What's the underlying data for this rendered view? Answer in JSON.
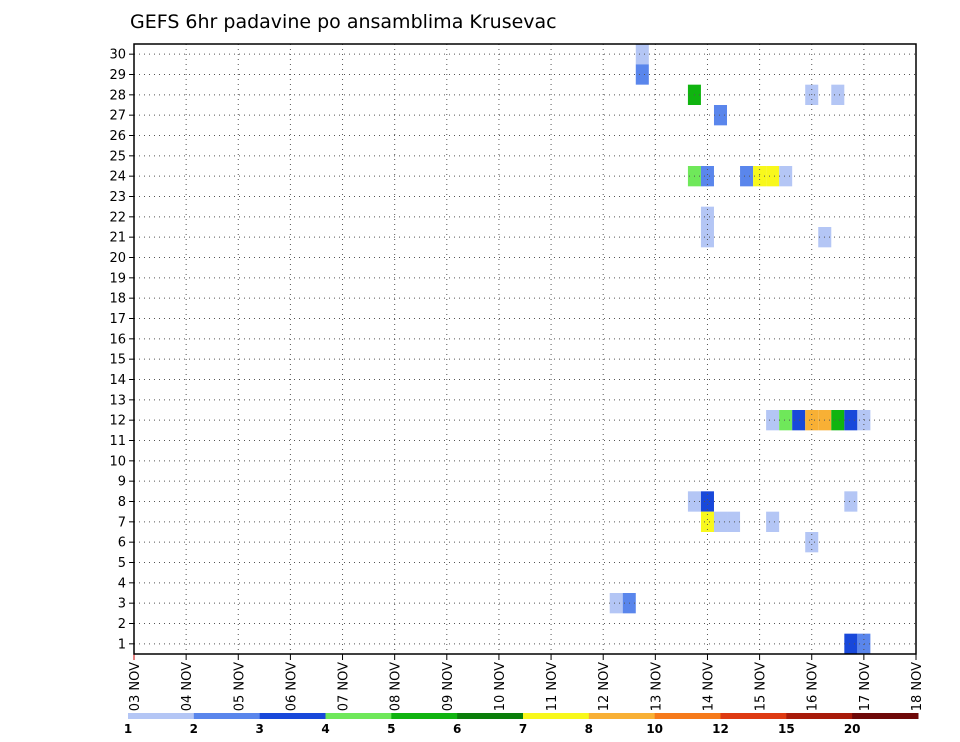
{
  "chart_data": {
    "type": "heatmap",
    "title": "GEFS 6hr padavine po ansamblima Krusevac",
    "x_labels": [
      "03 NOV",
      "04 NOV",
      "05 NOV",
      "06 NOV",
      "07 NOV",
      "08 NOV",
      "09 NOV",
      "10 NOV",
      "11 NOV",
      "12 NOV",
      "13 NOV",
      "14 NOV",
      "15 NOV",
      "16 NOV",
      "17 NOV",
      "18 NOV"
    ],
    "y_labels": [
      "1",
      "2",
      "3",
      "4",
      "5",
      "6",
      "7",
      "8",
      "9",
      "10",
      "11",
      "12",
      "13",
      "14",
      "15",
      "16",
      "17",
      "18",
      "19",
      "20",
      "21",
      "22",
      "23",
      "24",
      "25",
      "26",
      "27",
      "28",
      "29",
      "30"
    ],
    "xlim_days": [
      0,
      15
    ],
    "ylim": [
      0.5,
      30.5
    ],
    "grid": true,
    "colorbar": {
      "labels": [
        "1",
        "2",
        "3",
        "4",
        "5",
        "6",
        "7",
        "8",
        "10",
        "12",
        "15",
        "20"
      ],
      "colors": [
        "#b4c6f5",
        "#5a86ec",
        "#1848da",
        "#6fe85a",
        "#10b410",
        "#0a7e0a",
        "#f8f81c",
        "#f8b035",
        "#f67a1a",
        "#de3a12",
        "#a81a0a",
        "#6e0808"
      ]
    },
    "cells": [
      {
        "member": 30,
        "day": 9.75,
        "value": 1
      },
      {
        "member": 29,
        "day": 9.75,
        "value": 2
      },
      {
        "member": 28,
        "day": 10.75,
        "value": 5
      },
      {
        "member": 28,
        "day": 13.0,
        "value": 1
      },
      {
        "member": 28,
        "day": 13.5,
        "value": 1
      },
      {
        "member": 27,
        "day": 11.25,
        "value": 2
      },
      {
        "member": 24,
        "day": 10.75,
        "value": 4
      },
      {
        "member": 24,
        "day": 11.0,
        "value": 2
      },
      {
        "member": 24,
        "day": 11.75,
        "value": 2
      },
      {
        "member": 24,
        "day": 12.0,
        "value": 7
      },
      {
        "member": 24,
        "day": 12.25,
        "value": 7
      },
      {
        "member": 24,
        "day": 12.5,
        "value": 1
      },
      {
        "member": 22,
        "day": 11.0,
        "value": 1
      },
      {
        "member": 21,
        "day": 11.0,
        "value": 1
      },
      {
        "member": 21,
        "day": 13.25,
        "value": 1
      },
      {
        "member": 12,
        "day": 12.25,
        "value": 1
      },
      {
        "member": 12,
        "day": 12.5,
        "value": 4
      },
      {
        "member": 12,
        "day": 12.75,
        "value": 3
      },
      {
        "member": 12,
        "day": 13.0,
        "value": 8
      },
      {
        "member": 12,
        "day": 13.25,
        "value": 8
      },
      {
        "member": 12,
        "day": 13.5,
        "value": 5
      },
      {
        "member": 12,
        "day": 13.75,
        "value": 3
      },
      {
        "member": 12,
        "day": 14.0,
        "value": 1
      },
      {
        "member": 8,
        "day": 10.75,
        "value": 1
      },
      {
        "member": 8,
        "day": 11.0,
        "value": 3
      },
      {
        "member": 8,
        "day": 13.75,
        "value": 1
      },
      {
        "member": 7,
        "day": 11.0,
        "value": 7
      },
      {
        "member": 7,
        "day": 11.25,
        "value": 1
      },
      {
        "member": 7,
        "day": 11.5,
        "value": 1
      },
      {
        "member": 7,
        "day": 12.25,
        "value": 1
      },
      {
        "member": 6,
        "day": 13.0,
        "value": 1
      },
      {
        "member": 3,
        "day": 9.25,
        "value": 1
      },
      {
        "member": 3,
        "day": 9.5,
        "value": 2
      },
      {
        "member": 1,
        "day": 13.75,
        "value": 3
      },
      {
        "member": 1,
        "day": 14.0,
        "value": 2
      }
    ]
  }
}
